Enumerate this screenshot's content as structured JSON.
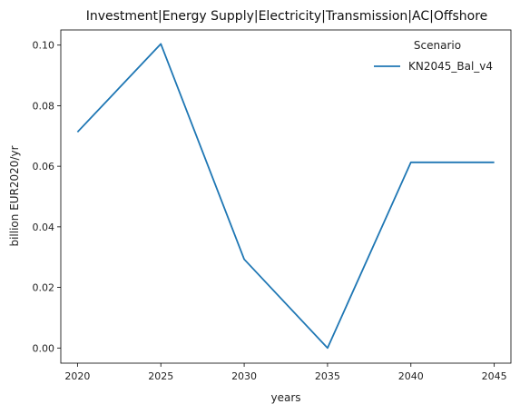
{
  "chart_data": {
    "type": "line",
    "title": "Investment|Energy Supply|Electricity|Transmission|AC|Offshore",
    "xlabel": "years",
    "ylabel": "billion EUR2020/yr",
    "x": [
      2020,
      2025,
      2030,
      2035,
      2040,
      2045
    ],
    "xticks": [
      "2020",
      "2025",
      "2030",
      "2035",
      "2040",
      "2045"
    ],
    "yticks": [
      "0.00",
      "0.02",
      "0.04",
      "0.06",
      "0.08",
      "0.10"
    ],
    "ylim": [
      -0.005,
      0.105
    ],
    "xlim": [
      2019,
      2046
    ],
    "series": [
      {
        "name": "KN2045_Bal_v4",
        "color": "#1f77b4",
        "values": [
          0.0713,
          0.1004,
          0.0293,
          0.0,
          0.0613,
          0.0613
        ]
      }
    ],
    "legend": {
      "title": "Scenario",
      "placement": "top-right"
    },
    "grid": false
  }
}
